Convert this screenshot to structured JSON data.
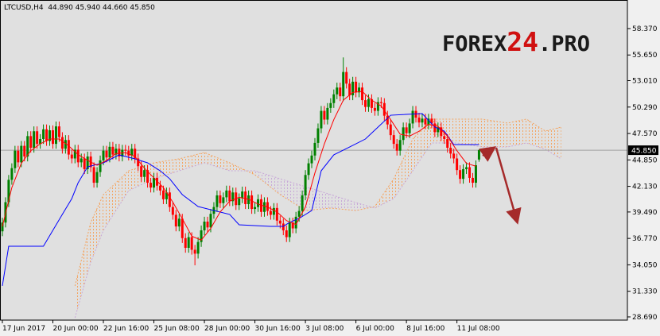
{
  "chart_data": {
    "type": "candlestick",
    "title": "LTCUSD,H4  44.890 45.940 44.660 45.850",
    "logo": {
      "prefix": "FOREX",
      "number": "24",
      "suffix": ".PRO"
    },
    "xlim": [
      -0.75,
      198
    ],
    "xticks": [
      {
        "value": 0,
        "label": "17 Jun 2017"
      },
      {
        "value": 16,
        "label": "20 Jun 00:00"
      },
      {
        "value": 32,
        "label": "22 Jun 16:00"
      },
      {
        "value": 48,
        "label": "25 Jun 08:00"
      },
      {
        "value": 64,
        "label": "28 Jun 00:00"
      },
      {
        "value": 80,
        "label": "30 Jun 16:00"
      },
      {
        "value": 96,
        "label": "3 Jul 08:00"
      },
      {
        "value": 112,
        "label": "6 Jul 00:00"
      },
      {
        "value": 128,
        "label": "8 Jul 16:00"
      },
      {
        "value": 144,
        "label": "11 Jul 08:00"
      }
    ],
    "ylim": [
      28.36,
      61.31
    ],
    "yticks": [
      {
        "value": 28.69,
        "label": "28.690"
      },
      {
        "value": 31.33,
        "label": "31.330"
      },
      {
        "value": 34.05,
        "label": "34.050"
      },
      {
        "value": 36.77,
        "label": "36.770"
      },
      {
        "value": 39.49,
        "label": "39.490"
      },
      {
        "value": 42.13,
        "label": "42.130"
      },
      {
        "value": 44.85,
        "label": "44.850"
      },
      {
        "value": 47.57,
        "label": "47.570"
      },
      {
        "value": 50.29,
        "label": "50.290"
      },
      {
        "value": 53.01,
        "label": "53.010"
      },
      {
        "value": 55.65,
        "label": "55.650"
      },
      {
        "value": 58.37,
        "label": "58.370"
      }
    ],
    "last_price": {
      "value": 45.85,
      "label": "45.850"
    },
    "candles": {
      "up_color": "#008000",
      "down_color": "#ff0000",
      "x": [
        0,
        1,
        2,
        3,
        4,
        5,
        6,
        7,
        8,
        9,
        10,
        11,
        12,
        13,
        14,
        15,
        16,
        17,
        18,
        19,
        20,
        21,
        22,
        23,
        24,
        25,
        26,
        27,
        28,
        29,
        30,
        31,
        32,
        33,
        34,
        35,
        36,
        37,
        38,
        39,
        40,
        41,
        42,
        43,
        44,
        45,
        46,
        47,
        48,
        49,
        50,
        51,
        52,
        53,
        54,
        55,
        56,
        57,
        58,
        59,
        60,
        61,
        62,
        63,
        64,
        65,
        66,
        67,
        68,
        69,
        70,
        71,
        72,
        73,
        74,
        75,
        76,
        77,
        78,
        79,
        80,
        81,
        82,
        83,
        84,
        85,
        86,
        87,
        88,
        89,
        90,
        91,
        92,
        93,
        94,
        95,
        96,
        97,
        98,
        99,
        100,
        101,
        102,
        103,
        104,
        105,
        106,
        107,
        108,
        109,
        110,
        111,
        112,
        113,
        114,
        115,
        116,
        117,
        118,
        119,
        120,
        121,
        122,
        123,
        124,
        125,
        126,
        127,
        128,
        129,
        130,
        131,
        132,
        133,
        134,
        135,
        136,
        137,
        138,
        139,
        140,
        141,
        142,
        143,
        144,
        145,
        146,
        147,
        148,
        149,
        150,
        151
      ],
      "open": [
        37.5,
        38.4,
        40.5,
        42.8,
        44.0,
        45.8,
        44.6,
        46.3,
        45.2,
        47.3,
        46.1,
        47.8,
        46.5,
        47.0,
        48.0,
        46.8,
        47.9,
        46.5,
        48.3,
        47.2,
        46.0,
        46.9,
        45.4,
        45.0,
        45.9,
        44.6,
        45.0,
        43.9,
        45.2,
        44.1,
        42.5,
        43.6,
        44.8,
        45.8,
        45.1,
        46.2,
        45.4,
        46.0,
        45.2,
        45.9,
        45.8,
        45.3,
        46.0,
        45.0,
        44.2,
        43.1,
        43.8,
        42.5,
        42.0,
        43.0,
        42.2,
        41.7,
        40.8,
        41.5,
        40.0,
        39.2,
        38.0,
        38.8,
        36.8,
        35.8,
        36.9,
        35.6,
        35.2,
        36.4,
        37.6,
        38.5,
        37.9,
        39.3,
        40.0,
        41.2,
        40.4,
        41.0,
        41.7,
        40.6,
        41.5,
        40.2,
        40.9,
        41.6,
        40.3,
        41.2,
        39.8,
        40.0,
        40.8,
        39.5,
        40.5,
        39.6,
        39.2,
        39.9,
        38.6,
        38.3,
        37.6,
        36.9,
        38.4,
        37.8,
        39.0,
        39.6,
        41.2,
        43.3,
        44.5,
        45.3,
        46.6,
        48.1,
        49.9,
        49.0,
        50.2,
        50.7,
        51.6,
        52.3,
        51.4,
        53.9,
        52.7,
        51.5,
        52.9,
        51.8,
        52.3,
        51.0,
        50.3,
        51.1,
        50.2,
        49.9,
        50.8,
        50.7,
        49.4,
        48.5,
        47.4,
        46.5,
        45.8,
        46.9,
        48.2,
        47.6,
        48.6,
        49.9,
        49.2,
        48.7,
        49.1,
        48.5,
        49.1,
        48.6,
        47.7,
        48.2,
        47.3,
        47.0,
        46.1,
        45.5,
        45.0,
        43.8,
        42.9,
        43.9,
        44.1,
        43.0,
        42.5,
        44.89
      ],
      "high": [
        38.9,
        41.0,
        43.3,
        44.5,
        46.3,
        46.3,
        46.8,
        46.8,
        47.8,
        47.8,
        48.3,
        48.3,
        47.5,
        48.5,
        48.5,
        48.4,
        48.4,
        48.8,
        48.8,
        47.7,
        47.4,
        47.4,
        45.9,
        46.4,
        46.4,
        45.5,
        45.5,
        45.7,
        45.7,
        44.6,
        44.1,
        45.3,
        46.3,
        46.3,
        46.7,
        46.7,
        46.5,
        46.5,
        46.4,
        46.4,
        46.3,
        46.5,
        46.5,
        45.5,
        44.7,
        44.3,
        44.3,
        43.0,
        43.5,
        43.5,
        42.7,
        42.2,
        42.0,
        42.0,
        40.5,
        39.7,
        39.3,
        39.3,
        37.3,
        37.4,
        37.4,
        36.1,
        36.9,
        38.1,
        39.0,
        39.0,
        39.8,
        40.5,
        41.7,
        41.7,
        41.5,
        42.2,
        42.2,
        42.0,
        42.0,
        41.4,
        42.1,
        42.1,
        41.7,
        41.7,
        40.5,
        41.3,
        41.3,
        41.0,
        41.0,
        40.1,
        40.4,
        40.4,
        39.1,
        38.8,
        38.1,
        38.9,
        38.9,
        39.5,
        40.1,
        41.7,
        43.8,
        45.0,
        45.8,
        47.1,
        48.6,
        50.4,
        50.4,
        50.7,
        51.2,
        52.1,
        52.8,
        52.8,
        55.4,
        54.4,
        53.2,
        53.4,
        53.4,
        52.8,
        52.8,
        51.5,
        51.6,
        51.6,
        50.7,
        51.3,
        51.3,
        51.2,
        49.9,
        49.0,
        47.9,
        47.0,
        47.4,
        48.7,
        48.7,
        49.1,
        50.4,
        50.4,
        49.7,
        49.6,
        49.6,
        49.6,
        49.6,
        49.1,
        48.7,
        48.7,
        47.8,
        47.5,
        46.6,
        46.0,
        45.5,
        44.3,
        44.4,
        44.6,
        44.6,
        43.5,
        44.8,
        45.94
      ],
      "low": [
        37.0,
        37.9,
        40.0,
        42.3,
        43.5,
        44.1,
        44.1,
        44.7,
        44.7,
        45.6,
        45.6,
        46.0,
        46.0,
        46.5,
        46.3,
        46.3,
        46.0,
        46.0,
        46.7,
        45.5,
        45.5,
        44.9,
        44.5,
        44.5,
        44.1,
        44.1,
        43.4,
        43.4,
        43.6,
        42.0,
        42.0,
        43.1,
        44.3,
        44.6,
        44.6,
        44.9,
        44.9,
        44.7,
        44.7,
        45.3,
        44.8,
        44.8,
        44.5,
        43.7,
        42.6,
        42.6,
        42.0,
        41.5,
        41.5,
        41.7,
        41.2,
        40.3,
        40.3,
        39.5,
        38.7,
        37.5,
        37.5,
        36.3,
        35.3,
        35.3,
        35.1,
        34.0,
        34.7,
        35.9,
        37.1,
        37.4,
        37.4,
        38.8,
        39.5,
        39.9,
        39.9,
        40.5,
        40.1,
        40.1,
        39.7,
        39.7,
        40.4,
        39.8,
        39.8,
        39.3,
        39.3,
        39.5,
        39.0,
        39.0,
        39.1,
        38.7,
        38.7,
        38.1,
        37.8,
        37.1,
        36.4,
        36.4,
        37.3,
        37.3,
        38.5,
        39.1,
        40.7,
        42.8,
        44.0,
        44.8,
        46.1,
        47.6,
        48.5,
        48.5,
        49.7,
        50.2,
        51.1,
        50.9,
        50.9,
        52.2,
        51.0,
        51.0,
        51.3,
        51.3,
        50.5,
        49.8,
        49.8,
        49.7,
        49.4,
        49.4,
        50.2,
        48.9,
        48.0,
        46.9,
        46.0,
        45.3,
        45.3,
        46.4,
        47.1,
        47.1,
        48.1,
        48.7,
        48.2,
        48.2,
        48.0,
        48.0,
        48.1,
        47.2,
        47.2,
        46.8,
        46.5,
        45.6,
        45.0,
        44.5,
        43.3,
        42.4,
        42.4,
        43.4,
        42.5,
        42.0,
        42.0,
        44.66
      ],
      "close": [
        38.4,
        40.5,
        42.8,
        44.0,
        45.8,
        44.6,
        46.3,
        45.2,
        47.3,
        46.1,
        47.8,
        46.5,
        47.0,
        48.0,
        46.8,
        47.9,
        46.5,
        48.3,
        47.2,
        46.0,
        46.9,
        45.4,
        45.0,
        45.9,
        44.6,
        45.0,
        43.9,
        45.2,
        44.1,
        42.5,
        43.6,
        44.8,
        45.8,
        45.1,
        46.2,
        45.4,
        46.0,
        45.2,
        45.9,
        45.8,
        45.3,
        46.0,
        45.0,
        44.2,
        43.1,
        43.8,
        42.5,
        42.0,
        43.0,
        42.2,
        41.7,
        40.8,
        41.5,
        40.0,
        39.2,
        38.0,
        38.8,
        36.8,
        35.8,
        36.9,
        35.6,
        35.2,
        36.4,
        37.6,
        38.5,
        37.9,
        39.3,
        40.0,
        41.2,
        40.4,
        41.0,
        41.7,
        40.6,
        41.5,
        40.2,
        40.9,
        41.6,
        40.3,
        41.2,
        39.8,
        40.0,
        40.8,
        39.5,
        40.5,
        39.6,
        39.2,
        39.9,
        38.6,
        38.3,
        37.6,
        36.9,
        38.4,
        37.8,
        39.0,
        39.6,
        41.2,
        43.3,
        44.5,
        45.3,
        46.6,
        48.1,
        49.9,
        49.0,
        50.2,
        50.7,
        51.6,
        52.3,
        51.4,
        53.9,
        52.7,
        51.5,
        52.9,
        51.8,
        52.3,
        51.0,
        50.3,
        51.1,
        50.2,
        49.9,
        50.8,
        50.7,
        49.4,
        48.5,
        47.4,
        46.5,
        45.8,
        46.9,
        48.2,
        47.6,
        48.6,
        49.9,
        49.2,
        48.7,
        49.1,
        48.5,
        49.1,
        48.6,
        47.7,
        48.2,
        47.3,
        47.0,
        46.1,
        45.5,
        45.0,
        43.8,
        42.9,
        43.9,
        44.1,
        43.0,
        42.5,
        44.3,
        45.85
      ]
    },
    "cloud": {
      "up_color": "#f4a460",
      "down_color": "#c8a8d8",
      "x": [
        23,
        28,
        32,
        40,
        48,
        56,
        64,
        72,
        80,
        88,
        96,
        104,
        112,
        118,
        124,
        130,
        136,
        144,
        152,
        160,
        166,
        172,
        177
      ],
      "span_a": [
        31.88,
        38.42,
        41.28,
        43.73,
        44.55,
        44.96,
        45.61,
        44.55,
        43.32,
        41.28,
        39.64,
        39.89,
        39.64,
        40.05,
        42.91,
        47.0,
        49.05,
        49.05,
        49.05,
        48.64,
        49.05,
        47.82,
        48.23
      ],
      "span_b": [
        28.6,
        34.33,
        37.6,
        41.69,
        42.91,
        43.73,
        44.55,
        43.73,
        43.73,
        42.91,
        42.09,
        41.28,
        40.46,
        39.89,
        40.87,
        43.73,
        46.59,
        46.59,
        46.18,
        46.18,
        46.59,
        45.94,
        44.96
      ]
    },
    "lines": [
      {
        "color": "#0000ff",
        "x": [
          0,
          2,
          13,
          19,
          22,
          24,
          27,
          32,
          37,
          42,
          46,
          50,
          53,
          57,
          62,
          67,
          72,
          75,
          85,
          89,
          91,
          94,
          98,
          101,
          105,
          110,
          115,
          119,
          123,
          133,
          137,
          140,
          143,
          151
        ],
        "values": [
          31.88,
          35.96,
          35.96,
          39.24,
          40.87,
          42.5,
          44.14,
          44.55,
          45.37,
          44.96,
          44.55,
          43.73,
          42.91,
          41.28,
          40.05,
          39.64,
          39.24,
          38.17,
          38.01,
          38.01,
          38.42,
          38.83,
          39.64,
          43.73,
          45.37,
          46.18,
          47.0,
          48.23,
          49.45,
          49.62,
          48.23,
          47.82,
          46.43,
          46.43
        ]
      },
      {
        "color": "#ff0000",
        "x": [
          0,
          3,
          6,
          9,
          12,
          15,
          18,
          21,
          24,
          27,
          30,
          33,
          36,
          39,
          42,
          45,
          48,
          51,
          54,
          57,
          60,
          63,
          66,
          69,
          72,
          75,
          78,
          81,
          84,
          87,
          90,
          93,
          96,
          99,
          102,
          105,
          108,
          111,
          114,
          117,
          120,
          123,
          126,
          129,
          132,
          135,
          138,
          141,
          144,
          147,
          150
        ],
        "values": [
          38.0,
          42.0,
          44.5,
          45.8,
          46.5,
          47.0,
          47.0,
          46.3,
          45.4,
          44.8,
          44.3,
          44.8,
          45.5,
          45.6,
          45.2,
          44.0,
          43.0,
          42.0,
          40.5,
          38.8,
          37.0,
          36.6,
          37.8,
          39.5,
          40.6,
          41.0,
          40.8,
          40.3,
          40.0,
          39.5,
          38.6,
          38.2,
          40.0,
          43.5,
          46.5,
          49.0,
          51.0,
          51.8,
          51.9,
          51.0,
          50.4,
          49.0,
          47.5,
          47.3,
          47.8,
          48.5,
          48.3,
          47.3,
          45.8,
          44.5,
          44.2
        ]
      }
    ]
  }
}
